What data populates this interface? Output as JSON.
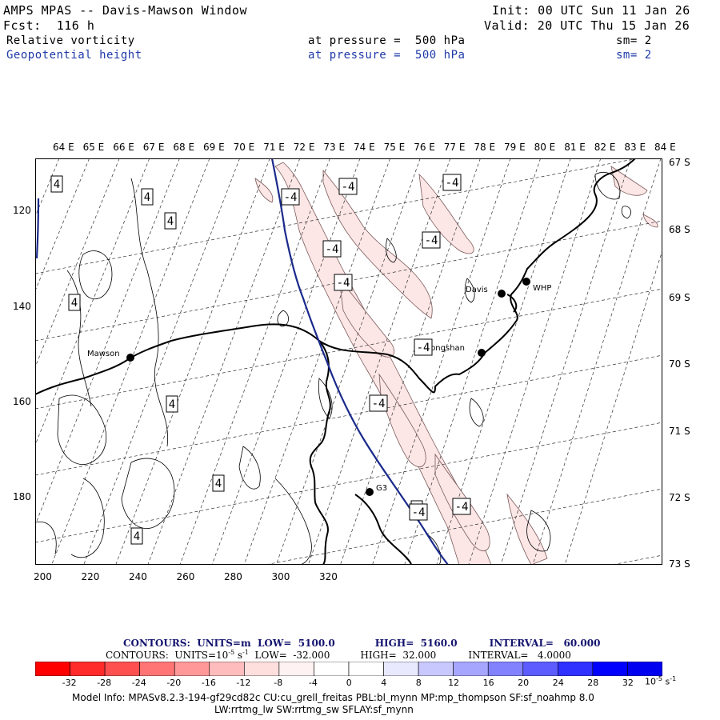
{
  "header": {
    "title": "AMPS MPAS -- Davis-Mawson Window",
    "init": "Init: 00 UTC Sun 11 Jan 26",
    "fcst": "Fcst:  116 h",
    "valid": "Valid: 20 UTC Thu 15 Jan 26",
    "fields": [
      {
        "name": "Relative vorticity",
        "level": "at pressure =  500 hPa",
        "sm": "sm= 2",
        "color": "#000000"
      },
      {
        "name": "Geopotential height",
        "level": "at pressure =  500 hPa",
        "sm": "sm= 2",
        "color": "#1f3aa8"
      }
    ]
  },
  "map": {
    "top_longitude_labels": [
      "64 E",
      "65 E",
      "66 E",
      "67 E",
      "68 E",
      "69 E",
      "70 E",
      "71 E",
      "72 E",
      "73 E",
      "74 E",
      "75 E",
      "76 E",
      "77 E",
      "78 E",
      "79 E",
      "80 E",
      "81 E",
      "82 E",
      "83 E",
      "84 E"
    ],
    "right_latitude_labels": [
      "67 S",
      "68 S",
      "69 S",
      "70 S",
      "71 S",
      "72 S",
      "73 S"
    ],
    "left_grid_labels": [
      "120",
      "140",
      "160",
      "180"
    ],
    "bottom_grid_labels": [
      "200",
      "220",
      "240",
      "260",
      "280",
      "300",
      "320"
    ],
    "contour_labels": [
      "4",
      "4",
      "4",
      "4",
      "4",
      "4",
      "4",
      "4",
      "-4",
      "-4",
      "-4",
      "-4",
      "-4",
      "-4",
      "-4",
      "-4",
      "-4",
      "-4"
    ],
    "stations": [
      "Davis",
      "WHP",
      "Zhongshan",
      "Mawson",
      "G3"
    ],
    "colors": {
      "positive_shade": "#fde6e6",
      "height_contour": "#1b2a8c",
      "coastline": "#000000"
    }
  },
  "contour_info": {
    "line1": {
      "prefix": "CONTOURS:  UNITS=m  LOW=  5100.0",
      "high": "HIGH=  5160.0",
      "interval": "INTERVAL=   60.000"
    },
    "line2": {
      "prefix": "CONTOURS:  UNITS=10",
      "exp": "-5",
      "unit": " s",
      "unit_exp": "-1",
      "low": "  LOW=  -32.000",
      "high": "HIGH=  32.000",
      "interval": "INTERVAL=   4.0000"
    }
  },
  "colorbar": {
    "colors": [
      "#ff0000",
      "#ff2a2a",
      "#ff5050",
      "#ff7575",
      "#ff9898",
      "#ffbcbc",
      "#ffdede",
      "#fff2f2",
      "#ffffff",
      "#ffffff",
      "#e8e8ff",
      "#c8c8ff",
      "#a6a6ff",
      "#8282ff",
      "#5c5cff",
      "#3030ff",
      "#0000ff",
      "#0000f0"
    ],
    "labels": [
      "-32",
      "-28",
      "-24",
      "-20",
      "-16",
      "-12",
      "-8",
      "-4",
      "0",
      "4",
      "8",
      "12",
      "16",
      "20",
      "24",
      "28",
      "32"
    ],
    "unit": "10",
    "unit_exp": "-5",
    "unit_s": " s",
    "unit_s_exp": "-1"
  },
  "footer": {
    "line1": "Model Info: MPASv8.2.3-194-gf29cd82c CU:cu_grell_freitas PBL:bl_mynn MP:mp_thompson SF:sf_noahmp 8.0",
    "line2": "LW:rrtmg_lw SW:rrtmg_sw SFLAY:sf_mynn"
  }
}
